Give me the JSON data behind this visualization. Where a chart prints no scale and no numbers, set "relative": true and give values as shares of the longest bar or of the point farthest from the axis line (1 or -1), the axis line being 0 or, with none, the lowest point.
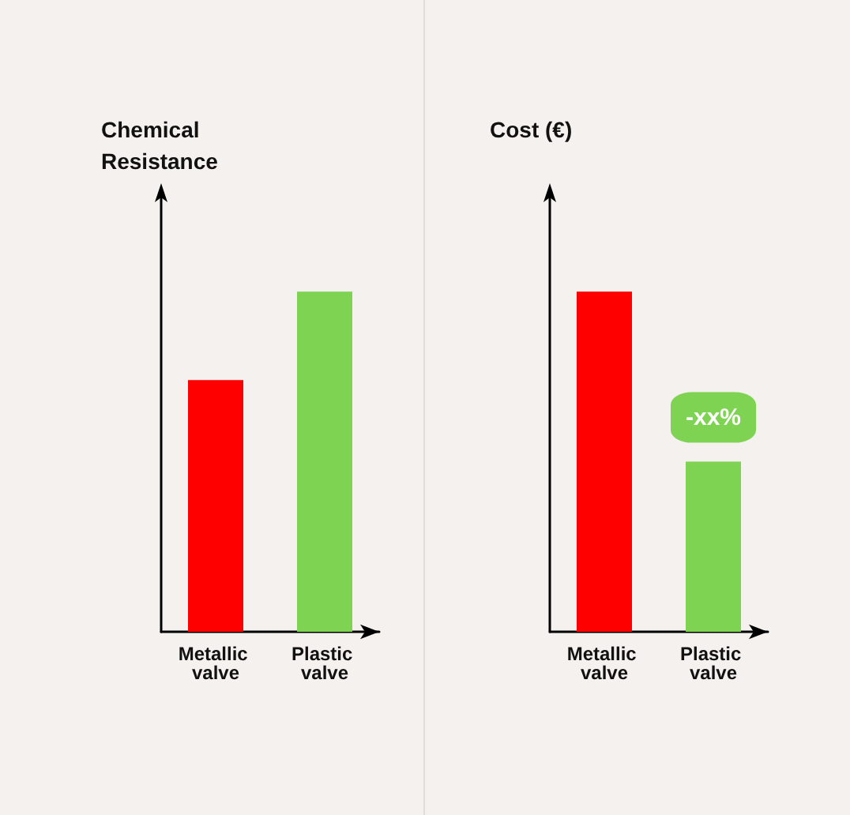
{
  "chart_data": [
    {
      "type": "bar",
      "ylabel": "Chemical Resistance",
      "categories": [
        "Metallic valve",
        "Plastic valve"
      ],
      "values": [
        0.74,
        1
      ],
      "colors": [
        "#ff0000",
        "#7ed452"
      ],
      "relative": true
    },
    {
      "type": "bar",
      "ylabel": "Cost (€)",
      "categories": [
        "Metallic valve",
        "Plastic valve"
      ],
      "values": [
        1,
        0.5
      ],
      "colors": [
        "#ff0000",
        "#7ed452"
      ],
      "relative": true,
      "annotations": [
        {
          "text": "-xx%",
          "x": "Plastic valve",
          "y": 0.5
        }
      ]
    }
  ]
}
